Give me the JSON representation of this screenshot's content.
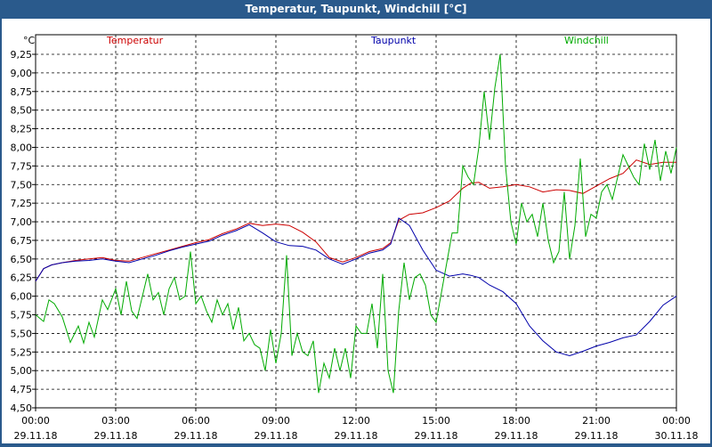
{
  "window": {
    "title": "Temperatur, Taupunkt, Windchill [°C]"
  },
  "chart_data": {
    "type": "line",
    "title": "Temperatur, Taupunkt, Windchill [°C]",
    "ylabel": "°C",
    "ylim": [
      4.5,
      9.45
    ],
    "yticks": [
      "9,25",
      "9,00",
      "8,75",
      "8,50",
      "8,25",
      "8,00",
      "7,75",
      "7,50",
      "7,25",
      "7,00",
      "6,75",
      "6,50",
      "6,25",
      "6,00",
      "5,75",
      "5,50",
      "5,25",
      "5,00",
      "4,75",
      "4,50"
    ],
    "xlim": [
      0,
      24
    ],
    "xticks": [
      {
        "time": "00:00",
        "date": "29.11.18"
      },
      {
        "time": "03:00",
        "date": "29.11.18"
      },
      {
        "time": "06:00",
        "date": "29.11.18"
      },
      {
        "time": "09:00",
        "date": "29.11.18"
      },
      {
        "time": "12:00",
        "date": "29.11.18"
      },
      {
        "time": "15:00",
        "date": "29.11.18"
      },
      {
        "time": "18:00",
        "date": "29.11.18"
      },
      {
        "time": "21:00",
        "date": "29.11.18"
      },
      {
        "time": "00:00",
        "date": "30.11.18"
      }
    ],
    "grid": true,
    "legend": "top",
    "x_unit": "hours since 29.11.18 00:00",
    "series": [
      {
        "name": "Temperatur",
        "color": "#cc0000",
        "x": [
          0,
          0.3,
          0.6,
          1,
          1.5,
          2,
          2.5,
          3,
          3.5,
          4,
          4.5,
          5,
          5.5,
          6,
          6.5,
          7,
          7.5,
          8,
          8.5,
          9,
          9.5,
          10,
          10.5,
          11,
          11.5,
          12,
          12.5,
          13,
          13.3,
          13.6,
          14,
          14.5,
          15,
          15.5,
          16,
          16.3,
          16.6,
          17,
          17.5,
          18,
          18.5,
          19,
          19.5,
          20,
          20.5,
          21,
          21.5,
          22,
          22.5,
          23,
          23.5,
          24
        ],
        "y": [
          6.2,
          6.37,
          6.42,
          6.45,
          6.48,
          6.5,
          6.52,
          6.48,
          6.47,
          6.52,
          6.57,
          6.62,
          6.67,
          6.72,
          6.76,
          6.84,
          6.9,
          6.98,
          6.95,
          6.97,
          6.95,
          6.86,
          6.73,
          6.52,
          6.46,
          6.52,
          6.6,
          6.64,
          6.72,
          7.02,
          7.1,
          7.12,
          7.19,
          7.28,
          7.45,
          7.52,
          7.53,
          7.45,
          7.47,
          7.5,
          7.47,
          7.4,
          7.43,
          7.42,
          7.38,
          7.48,
          7.58,
          7.65,
          7.83,
          7.77,
          7.8,
          7.8
        ]
      },
      {
        "name": "Taupunkt",
        "color": "#0000aa",
        "x": [
          0,
          0.3,
          0.6,
          1,
          1.5,
          2,
          2.5,
          3,
          3.5,
          4,
          4.5,
          5,
          5.5,
          6,
          6.5,
          7,
          7.5,
          8,
          8.5,
          9,
          9.5,
          10,
          10.5,
          11,
          11.5,
          12,
          12.5,
          13,
          13.3,
          13.6,
          14,
          14.5,
          15,
          15.5,
          16,
          16.3,
          16.6,
          17,
          17.5,
          18,
          18.5,
          19,
          19.5,
          20,
          20.5,
          21,
          21.5,
          22,
          22.5,
          23,
          23.5,
          24
        ],
        "y": [
          6.2,
          6.37,
          6.42,
          6.45,
          6.47,
          6.48,
          6.5,
          6.47,
          6.45,
          6.5,
          6.55,
          6.61,
          6.66,
          6.7,
          6.74,
          6.82,
          6.88,
          6.96,
          6.85,
          6.73,
          6.68,
          6.67,
          6.62,
          6.5,
          6.43,
          6.5,
          6.58,
          6.62,
          6.7,
          7.05,
          6.95,
          6.62,
          6.35,
          6.27,
          6.3,
          6.28,
          6.25,
          6.15,
          6.06,
          5.9,
          5.6,
          5.4,
          5.25,
          5.2,
          5.26,
          5.33,
          5.38,
          5.44,
          5.48,
          5.66,
          5.88,
          6.0
        ]
      },
      {
        "name": "Windchill",
        "color": "#00aa00",
        "x": [
          0,
          0.3,
          0.5,
          0.7,
          1,
          1.3,
          1.6,
          1.8,
          2,
          2.2,
          2.5,
          2.7,
          3,
          3.2,
          3.4,
          3.6,
          3.8,
          4,
          4.2,
          4.4,
          4.6,
          4.8,
          5,
          5.2,
          5.4,
          5.6,
          5.8,
          6,
          6.2,
          6.4,
          6.6,
          6.8,
          7,
          7.2,
          7.4,
          7.6,
          7.8,
          8,
          8.2,
          8.4,
          8.6,
          8.8,
          9,
          9.2,
          9.4,
          9.6,
          9.8,
          10,
          10.2,
          10.4,
          10.6,
          10.8,
          11,
          11.2,
          11.4,
          11.6,
          11.8,
          12,
          12.2,
          12.4,
          12.6,
          12.8,
          13,
          13.2,
          13.4,
          13.6,
          13.8,
          14,
          14.2,
          14.4,
          14.6,
          14.8,
          15,
          15.2,
          15.4,
          15.6,
          15.8,
          16,
          16.2,
          16.4,
          16.6,
          16.8,
          17,
          17.2,
          17.4,
          17.6,
          17.8,
          18,
          18.2,
          18.4,
          18.6,
          18.8,
          19,
          19.2,
          19.4,
          19.6,
          19.8,
          20,
          20.2,
          20.4,
          20.6,
          20.8,
          21,
          21.2,
          21.4,
          21.6,
          21.8,
          22,
          22.2,
          22.4,
          22.6,
          22.8,
          23,
          23.2,
          23.4,
          23.6,
          23.8,
          24
        ],
        "y": [
          5.75,
          5.66,
          5.95,
          5.9,
          5.72,
          5.38,
          5.6,
          5.37,
          5.65,
          5.45,
          5.95,
          5.82,
          6.1,
          5.75,
          6.2,
          5.8,
          5.7,
          6.0,
          6.3,
          5.95,
          6.05,
          5.75,
          6.1,
          6.25,
          5.95,
          6.0,
          6.6,
          5.9,
          6.0,
          5.8,
          5.65,
          5.95,
          5.75,
          5.9,
          5.55,
          5.85,
          5.4,
          5.5,
          5.35,
          5.3,
          5.0,
          5.55,
          5.1,
          5.5,
          6.55,
          5.2,
          5.5,
          5.25,
          5.2,
          5.4,
          4.7,
          5.1,
          4.9,
          5.3,
          5.0,
          5.3,
          4.9,
          5.6,
          5.5,
          5.5,
          5.9,
          5.3,
          6.3,
          5.0,
          4.7,
          5.8,
          6.45,
          5.95,
          6.25,
          6.3,
          6.15,
          5.75,
          5.65,
          6.05,
          6.45,
          6.85,
          6.85,
          7.75,
          7.6,
          7.5,
          8.0,
          8.75,
          8.1,
          8.8,
          9.25,
          7.75,
          7.0,
          6.7,
          7.25,
          7.0,
          7.1,
          6.8,
          7.25,
          6.75,
          6.45,
          6.6,
          7.4,
          6.5,
          6.95,
          7.85,
          6.8,
          7.1,
          7.05,
          7.4,
          7.5,
          7.3,
          7.6,
          7.9,
          7.75,
          7.6,
          7.5,
          8.05,
          7.7,
          8.1,
          7.55,
          7.95,
          7.65,
          8.0
        ]
      }
    ]
  }
}
